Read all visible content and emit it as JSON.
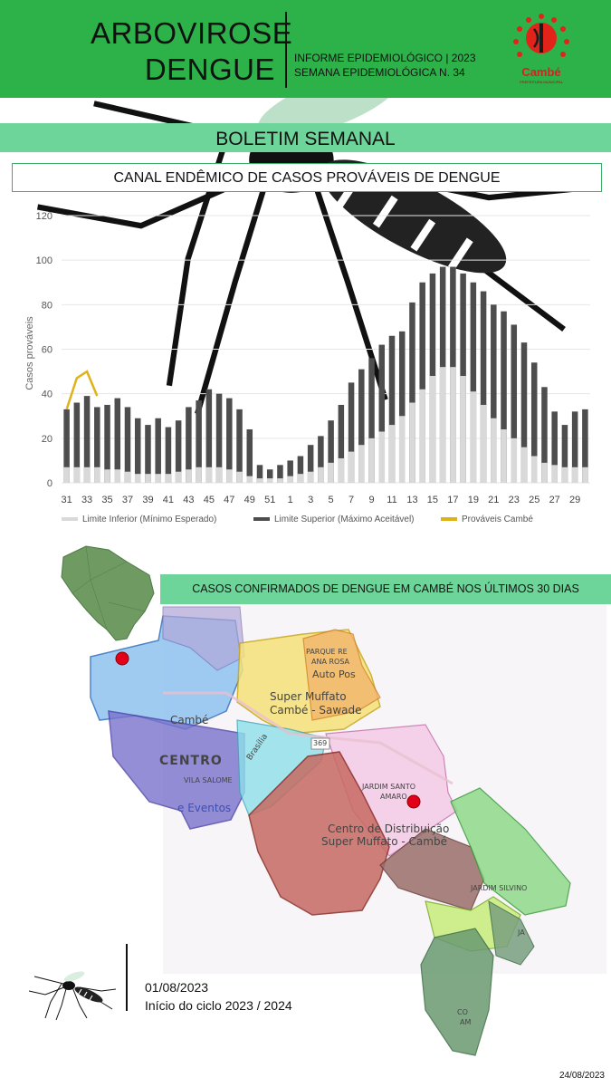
{
  "header": {
    "title_line1": "ARBOVIROSE",
    "title_line2": "DENGUE",
    "info_line1": "INFORME EPIDEMIOLÓGICO | 2023",
    "info_line2": "SEMANA EPIDEMIOLÓGICA  N. 34",
    "logo_text": "Cambé",
    "logo_sub": "PREFEITURA MUNICIPAL"
  },
  "banner": {
    "text": "BOLETIM SEMANAL"
  },
  "chart_section": {
    "title": "CANAL ENDÊMICO DE CASOS PROVÁVEIS DE DENGUE"
  },
  "colors": {
    "header_green": "#2db24a",
    "banner_green": "#6ed59a",
    "lower_limit": "#d9d9d9",
    "upper_limit": "#4d4d4d",
    "cambe_line": "#e0b21a",
    "case_marker": "#e3001b"
  },
  "chart_data": {
    "type": "bar",
    "title": "",
    "xlabel": "",
    "ylabel": "Casos prováveis",
    "ylim": [
      0,
      120
    ],
    "yticks": [
      0,
      20,
      40,
      60,
      80,
      100,
      120
    ],
    "grid": true,
    "legend_position": "bottom",
    "categories": [
      "31",
      "32",
      "33",
      "34",
      "35",
      "36",
      "37",
      "38",
      "39",
      "40",
      "41",
      "42",
      "43",
      "44",
      "45",
      "46",
      "47",
      "48",
      "49",
      "50",
      "51",
      "52",
      "1",
      "2",
      "3",
      "4",
      "5",
      "6",
      "7",
      "8",
      "9",
      "10",
      "11",
      "12",
      "13",
      "14",
      "15",
      "16",
      "17",
      "18",
      "19",
      "20",
      "21",
      "22",
      "23",
      "24",
      "25",
      "26",
      "27",
      "28",
      "29",
      "30"
    ],
    "x_tick_labels": [
      "31",
      "33",
      "35",
      "37",
      "39",
      "41",
      "43",
      "45",
      "47",
      "49",
      "51",
      "1",
      "3",
      "5",
      "7",
      "9",
      "11",
      "13",
      "15",
      "17",
      "19",
      "21",
      "23",
      "25",
      "27",
      "29"
    ],
    "series": [
      {
        "name": "Limite Inferior (Mínimo Esperado)",
        "type": "bar",
        "values": [
          7,
          7,
          7,
          7,
          6,
          6,
          5,
          4,
          4,
          4,
          4,
          5,
          6,
          7,
          7,
          7,
          6,
          5,
          3,
          2,
          2,
          2,
          3,
          4,
          5,
          7,
          9,
          11,
          14,
          17,
          20,
          23,
          26,
          30,
          36,
          42,
          48,
          52,
          52,
          48,
          41,
          35,
          29,
          24,
          20,
          16,
          12,
          9,
          8,
          7,
          7,
          7
        ]
      },
      {
        "name": "Limite Superior (Máximo Aceitável)",
        "type": "bar",
        "values": [
          33,
          36,
          39,
          34,
          35,
          38,
          34,
          29,
          26,
          29,
          25,
          28,
          34,
          37,
          42,
          40,
          38,
          33,
          24,
          8,
          6,
          8,
          10,
          12,
          17,
          21,
          28,
          35,
          45,
          51,
          56,
          62,
          66,
          68,
          81,
          90,
          94,
          97,
          97,
          94,
          90,
          86,
          80,
          77,
          71,
          63,
          54,
          43,
          32,
          26,
          32,
          33
        ]
      },
      {
        "name": "Prováveis Cambé",
        "type": "line",
        "values": [
          33,
          47,
          50,
          39,
          null,
          null,
          null,
          null,
          null,
          null,
          null,
          null,
          null,
          null,
          null,
          null,
          null,
          null,
          null,
          null,
          null,
          null,
          null,
          null,
          null,
          null,
          null,
          null,
          null,
          null,
          null,
          null,
          null,
          null,
          null,
          null,
          null,
          null,
          null,
          null,
          null,
          null,
          null,
          null,
          null,
          null,
          null,
          null,
          null,
          null,
          null,
          null
        ]
      }
    ]
  },
  "map": {
    "banner_text": "CASOS CONFIRMADOS DE DENGUE EM CAMBÉ NOS ÚLTIMOS 30 DIAS",
    "labels": {
      "parque": "PARQUE RE",
      "ana_rosa": "ANA ROSA",
      "auto_pos": "Auto Pos",
      "super_muffato": "Super Muffato",
      "cambe_sawade": "Cambé - Sawade",
      "cambe": "Cambé",
      "centro": "CENTRO",
      "vila_salome": "VILA SALOME",
      "eventos": "e Eventos",
      "brasilia": "Brasília",
      "road": "369",
      "jardim_santo": "JARDIM SANTO",
      "amaro": "AMARO",
      "centro_dist": "Centro de Distribuição",
      "muffato_cambe": "Super Muffato - Cambé",
      "jardim_silvino": "JARDIM SILVINO",
      "ja": "JA",
      "co": "CO",
      "am": "AM"
    }
  },
  "footer": {
    "date": "01/08/2023",
    "cycle": "Início do ciclo 2023 / 2024",
    "issue_date": "24/08/2023"
  }
}
